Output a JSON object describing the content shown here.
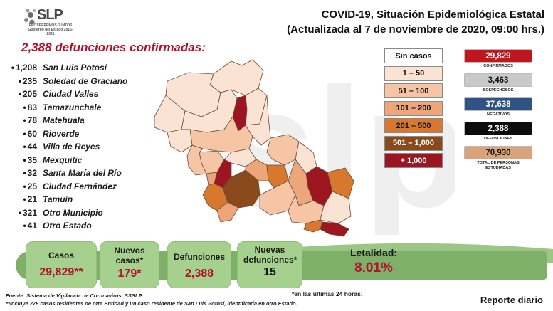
{
  "header": {
    "logo_text": "SLP",
    "logo_sub_1": "PROSPEREMOS JUNTOS",
    "logo_sub_2": "Gobierno del Estado 2015-2021",
    "title_line1": "COVID-19, Situación Epidemiológica Estatal",
    "title_line2": "(Actualizada al 7 de noviembre de 2020, 09:00 hrs.)"
  },
  "deaths": {
    "header": "2,388 defunciones confirmadas:",
    "items": [
      {
        "count": "1,208",
        "name": "San Luis Potosí"
      },
      {
        "count": "235",
        "name": "Soledad de Graciano"
      },
      {
        "count": "205",
        "name": "Ciudad Valles"
      },
      {
        "count": "83",
        "name": "Tamazunchale"
      },
      {
        "count": "78",
        "name": "Matehuala"
      },
      {
        "count": "60",
        "name": "Rioverde"
      },
      {
        "count": "44",
        "name": "Villa de Reyes"
      },
      {
        "count": "35",
        "name": "Mexquitic"
      },
      {
        "count": "32",
        "name": "Santa María del Río"
      },
      {
        "count": "25",
        "name": "Ciudad Fernández"
      },
      {
        "count": "21",
        "name": "Tamuín"
      },
      {
        "count": "321",
        "name": "Otro Municipio"
      },
      {
        "count": "41",
        "name": "Otro Estado"
      }
    ]
  },
  "legend": [
    {
      "label": "Sin casos",
      "bg": "#ffffff",
      "fg": "#111111"
    },
    {
      "label": "1 – 50",
      "bg": "#fbe3d4",
      "fg": "#111111"
    },
    {
      "label": "51 – 100",
      "bg": "#f6c5a6",
      "fg": "#111111"
    },
    {
      "label": "101 – 200",
      "bg": "#eda57a",
      "fg": "#111111"
    },
    {
      "label": "201 – 500",
      "bg": "#d8772e",
      "fg": "#111111"
    },
    {
      "label": "501 – 1,000",
      "bg": "#8b4a1c",
      "fg": "#ffffff"
    },
    {
      "label": "+ 1,000",
      "bg": "#9c1622",
      "fg": "#ffffff"
    }
  ],
  "stats": [
    {
      "value": "29,829",
      "label": "CONFIRMADOS",
      "bg": "#c0161e",
      "fg": "#ffffff"
    },
    {
      "value": "3,463",
      "label": "SOSPECHOSOS",
      "bg": "#c9c9c9",
      "fg": "#111111"
    },
    {
      "value": "37,638",
      "label": "NEGATIVOS",
      "bg": "#2f5483",
      "fg": "#ffffff"
    },
    {
      "value": "2,388",
      "label": "DEFUNCIONES",
      "bg": "#0d0d0d",
      "fg": "#ffffff"
    },
    {
      "value": "70,930",
      "label": "TOTAL DE PERSONAS ESTUDIADAS",
      "bg": "#d9a47a",
      "fg": "#111111"
    }
  ],
  "summary": {
    "casos_label": "Casos",
    "casos_value": "29,829**",
    "nuevos_casos_label": "Nuevos casos*",
    "nuevos_casos_value": "179*",
    "defunciones_label": "Defunciones",
    "defunciones_value": "2,388",
    "nuevas_defunciones_label": "Nuevas defunciones*",
    "nuevas_defunciones_value": "15",
    "letalidad_label": "Letalidad:",
    "letalidad_value": "8.01%"
  },
  "footer": {
    "note_24h": "*en las ultimas 24 horas.",
    "fuente": "Fuente: Sistema de Vigilancia de Coronavirus, SSSLP.",
    "nota": "**Incluye 278 casos residentes de otra Entidad y un caso residente de San Luis Potosí, identificada en otro Estado.",
    "reporte": "Reporte diario"
  }
}
